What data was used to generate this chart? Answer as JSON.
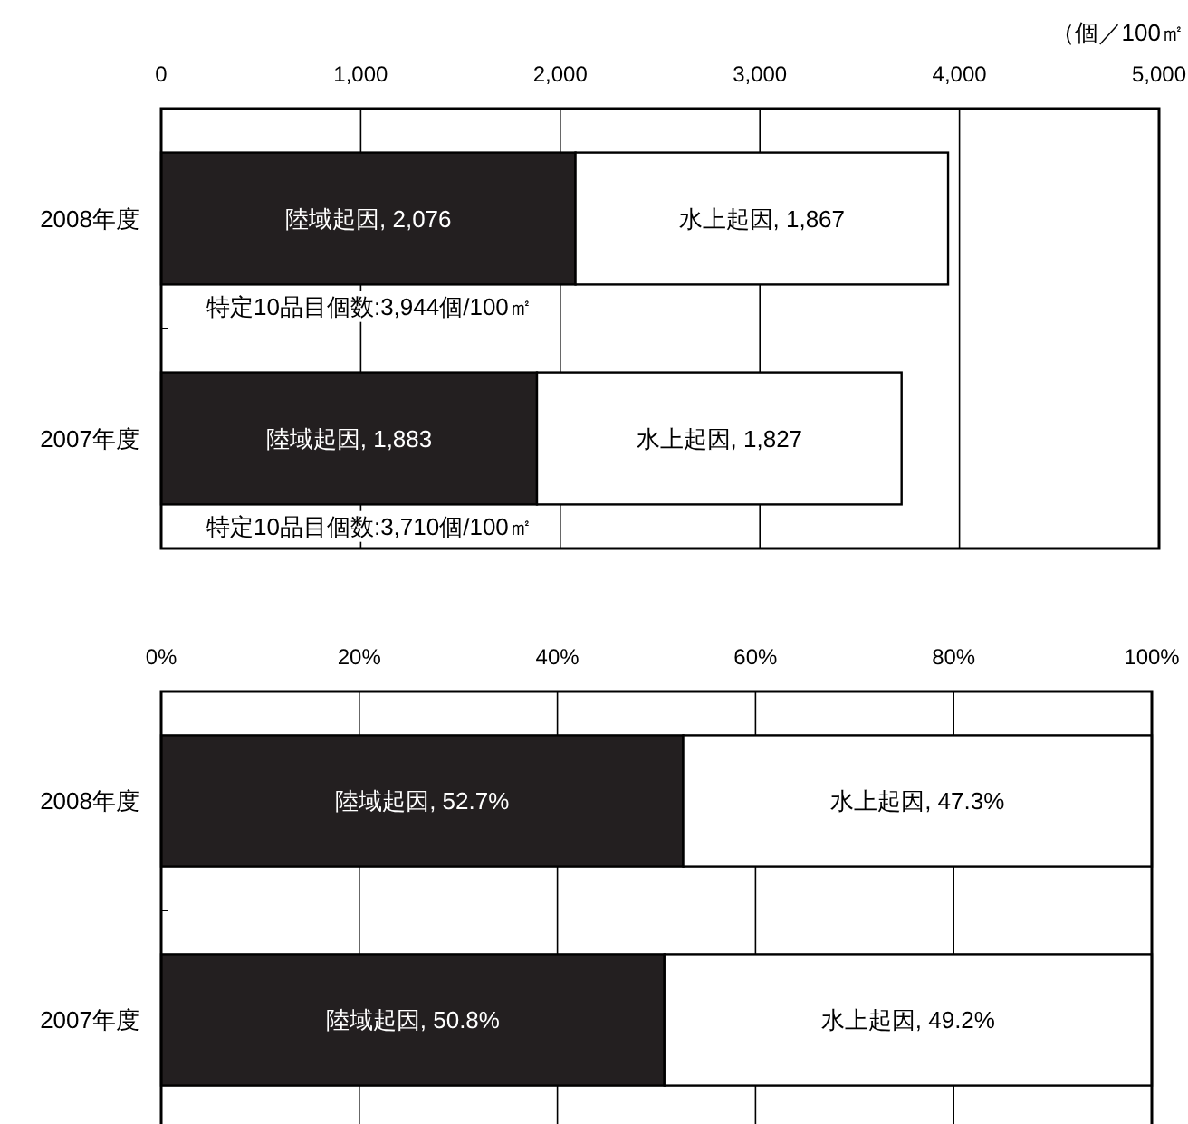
{
  "chart_data": [
    {
      "type": "bar",
      "orientation": "horizontal",
      "stacked": true,
      "grid": "x",
      "xlabel": "（個／100㎡",
      "categories": [
        "2008年度",
        "2007年度"
      ],
      "series": [
        {
          "color": "#231f20",
          "values": [
            2076,
            1883
          ],
          "value_labels": [
            "陸域起因, 2,076",
            "陸域起因, 1,883"
          ]
        },
        {
          "color": "#ffffff",
          "values": [
            1867,
            1827
          ],
          "value_labels": [
            "水上起因, 1,867",
            "水上起因, 1,827"
          ]
        }
      ],
      "totals": [
        "特定10品目個数:3,944個/100㎡",
        "特定10品目個数:3,710個/100㎡"
      ],
      "xlim": [
        0,
        5000
      ],
      "xticks": [
        0,
        {
          "value": 1000,
          "label": "1,000"
        },
        {
          "value": 2000,
          "label": "2,000"
        },
        {
          "value": 3000,
          "label": "3,000"
        },
        {
          "value": 4000,
          "label": "4,000"
        },
        {
          "value": 5000,
          "label": "5,000"
        }
      ]
    },
    {
      "type": "bar",
      "orientation": "horizontal",
      "stacked": true,
      "grid": "x",
      "categories": [
        "2008年度",
        "2007年度"
      ],
      "series": [
        {
          "color": "#231f20",
          "values": [
            52.7,
            50.8
          ],
          "value_labels": [
            "陸域起因, 52.7%",
            "陸域起因, 50.8%"
          ]
        },
        {
          "color": "#ffffff",
          "values": [
            47.3,
            49.2
          ],
          "value_labels": [
            "水上起因, 47.3%",
            "水上起因, 49.2%"
          ]
        }
      ],
      "xlim": [
        0,
        100
      ],
      "xticks": [
        {
          "value": 0,
          "label": "0%"
        },
        {
          "value": 20,
          "label": "20%"
        },
        {
          "value": 40,
          "label": "40%"
        },
        {
          "value": 60,
          "label": "60%"
        },
        {
          "value": 80,
          "label": "80%"
        },
        {
          "value": 100,
          "label": "100%"
        }
      ]
    }
  ]
}
